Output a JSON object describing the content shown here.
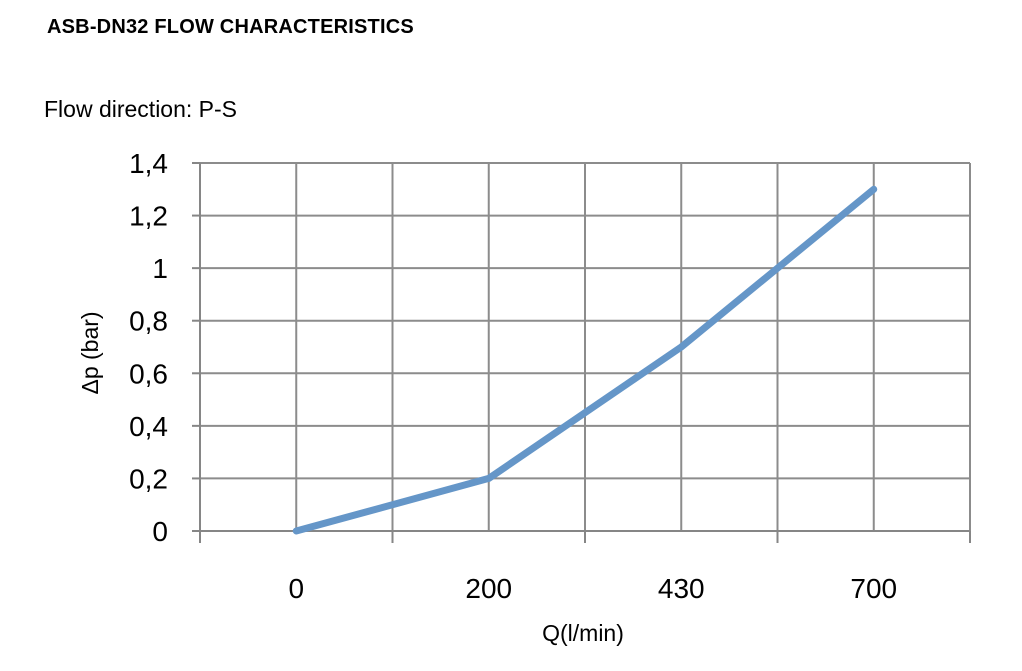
{
  "title": "ASB-DN32 FLOW CHARACTERISTICS",
  "subtitle": "Flow direction: P-S",
  "chart_data": {
    "type": "line",
    "title": "ASB-DN32 FLOW CHARACTERISTICS",
    "subtitle": "Flow direction: P-S",
    "xlabel": "Q(l/min)",
    "ylabel": "Δp (bar)",
    "x_tick_labels": [
      "0",
      "200",
      "430",
      "700"
    ],
    "y_tick_labels": [
      "0",
      "0,2",
      "0,4",
      "0,6",
      "0,8",
      "1",
      "1,2",
      "1,4"
    ],
    "ylim": [
      0,
      1.4
    ],
    "grid": true,
    "legend": "none",
    "series": [
      {
        "x": [
          0,
          200,
          430,
          700
        ],
        "values": [
          0,
          0.2,
          0.7,
          1.3
        ],
        "color": "#6596C8"
      }
    ]
  }
}
